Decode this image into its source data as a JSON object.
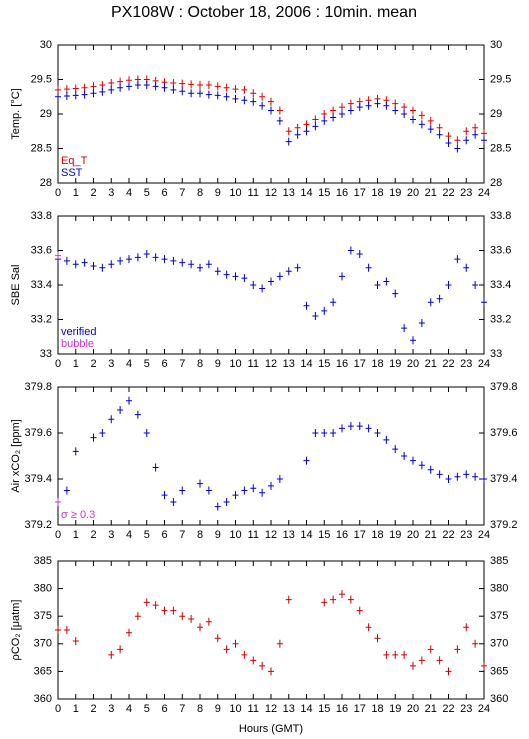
{
  "chart_data": [
    {
      "type": "scatter",
      "title": "PX108W : October 18, 2006 : 10min. mean",
      "ylabel": "Temp. [°C]",
      "x": [
        0,
        0.5,
        1,
        1.5,
        2,
        2.5,
        3,
        3.5,
        4,
        4.5,
        5,
        5.5,
        6,
        6.5,
        7,
        7.5,
        8,
        8.5,
        9,
        9.5,
        10,
        10.5,
        11,
        11.5,
        12,
        12.5,
        13,
        13.5,
        14,
        14.5,
        15,
        15.5,
        16,
        16.5,
        17,
        17.5,
        18,
        18.5,
        19,
        19.5,
        20,
        20.5,
        21,
        21.5,
        22,
        22.5,
        23,
        23.5,
        24
      ],
      "xlim": [
        0,
        24
      ],
      "xticks": [
        0,
        1,
        2,
        3,
        4,
        5,
        6,
        7,
        8,
        9,
        10,
        11,
        12,
        13,
        14,
        15,
        16,
        17,
        18,
        19,
        20,
        21,
        22,
        23,
        24
      ],
      "ylim": [
        28,
        30
      ],
      "yticks": [
        28,
        28.5,
        29,
        29.5,
        30
      ],
      "legend": "lower left",
      "series": [
        {
          "name": "Eq_T",
          "color": "#dd0000",
          "values": [
            29.35,
            29.36,
            29.37,
            29.38,
            29.4,
            29.42,
            29.45,
            29.47,
            29.49,
            29.5,
            29.5,
            29.48,
            29.46,
            29.45,
            29.44,
            29.43,
            29.42,
            29.42,
            29.4,
            29.38,
            29.36,
            29.35,
            29.3,
            29.25,
            29.18,
            29.05,
            28.75,
            28.8,
            28.85,
            28.92,
            29.0,
            29.05,
            29.1,
            29.15,
            29.18,
            29.2,
            29.22,
            29.2,
            29.15,
            29.1,
            29.05,
            28.98,
            28.9,
            28.8,
            28.68,
            28.62,
            28.75,
            28.8,
            28.72
          ]
        },
        {
          "name": "SST",
          "color": "#0000cc",
          "values": [
            29.25,
            29.26,
            29.27,
            29.28,
            29.3,
            29.32,
            29.35,
            29.38,
            29.4,
            29.42,
            29.42,
            29.4,
            29.38,
            29.35,
            29.33,
            29.3,
            29.3,
            29.28,
            29.27,
            29.25,
            29.22,
            29.2,
            29.18,
            29.12,
            29.05,
            28.9,
            28.6,
            28.7,
            28.75,
            28.82,
            28.9,
            28.95,
            29.0,
            29.05,
            29.1,
            29.12,
            29.15,
            29.12,
            29.05,
            29.0,
            28.92,
            28.85,
            28.78,
            28.7,
            28.58,
            28.5,
            28.62,
            28.7,
            28.62
          ]
        }
      ]
    },
    {
      "type": "scatter",
      "ylabel": "SBE Sal",
      "x": [
        0,
        0.5,
        1,
        1.5,
        2,
        2.5,
        3,
        3.5,
        4,
        4.5,
        5,
        5.5,
        6,
        6.5,
        7,
        7.5,
        8,
        8.5,
        9,
        9.5,
        10,
        10.5,
        11,
        11.5,
        12,
        12.5,
        13,
        13.5,
        14,
        14.5,
        15,
        15.5,
        16,
        16.5,
        17,
        17.5,
        18,
        18.5,
        19,
        19.5,
        20,
        20.5,
        21,
        21.5,
        22,
        22.5,
        23,
        23.5,
        24
      ],
      "xlim": [
        0,
        24
      ],
      "xticks": [
        0,
        1,
        2,
        3,
        4,
        5,
        6,
        7,
        8,
        9,
        10,
        11,
        12,
        13,
        14,
        15,
        16,
        17,
        18,
        19,
        20,
        21,
        22,
        23,
        24
      ],
      "ylim": [
        33,
        33.8
      ],
      "yticks": [
        33,
        33.2,
        33.4,
        33.6,
        33.8
      ],
      "legend": "lower left",
      "series": [
        {
          "name": "verified",
          "color": "#0000cc",
          "values": [
            33.55,
            33.54,
            33.52,
            33.53,
            33.51,
            33.5,
            33.52,
            33.54,
            33.55,
            33.56,
            33.58,
            33.56,
            33.55,
            33.54,
            33.53,
            33.52,
            33.5,
            33.52,
            33.48,
            33.46,
            33.45,
            33.44,
            33.4,
            33.38,
            33.42,
            33.45,
            33.48,
            33.5,
            33.28,
            33.22,
            33.25,
            33.3,
            33.45,
            33.6,
            33.58,
            33.5,
            33.4,
            33.42,
            33.35,
            33.15,
            33.08,
            33.18,
            33.3,
            33.32,
            33.4,
            33.55,
            33.5,
            33.4,
            33.3
          ]
        },
        {
          "name": "bubble",
          "color": "#cc33cc",
          "values": [
            33.57,
            null,
            null,
            null,
            null,
            null,
            null,
            null,
            null,
            null,
            null,
            null,
            null,
            null,
            null,
            null,
            null,
            null,
            null,
            null,
            null,
            null,
            null,
            null,
            null,
            null,
            null,
            null,
            null,
            null,
            null,
            null,
            null,
            null,
            null,
            null,
            null,
            null,
            null,
            null,
            null,
            null,
            null,
            null,
            null,
            null,
            null,
            null,
            null
          ]
        }
      ]
    },
    {
      "type": "scatter",
      "ylabel": "Air xCO₂ [ppm]",
      "x": [
        0,
        0.5,
        1,
        1.5,
        2,
        2.5,
        3,
        3.5,
        4,
        4.5,
        5,
        5.5,
        6,
        6.5,
        7,
        7.5,
        8,
        8.5,
        9,
        9.5,
        10,
        10.5,
        11,
        11.5,
        12,
        12.5,
        13,
        13.5,
        14,
        14.5,
        15,
        15.5,
        16,
        16.5,
        17,
        17.5,
        18,
        18.5,
        19,
        19.5,
        20,
        20.5,
        21,
        21.5,
        22,
        22.5,
        23,
        23.5,
        24
      ],
      "xlim": [
        0,
        24
      ],
      "xticks": [
        0,
        1,
        2,
        3,
        4,
        5,
        6,
        7,
        8,
        9,
        10,
        11,
        12,
        13,
        14,
        15,
        16,
        17,
        18,
        19,
        20,
        21,
        22,
        23,
        24
      ],
      "ylim": [
        379.2,
        379.8
      ],
      "yticks": [
        379.2,
        379.4,
        379.6,
        379.8
      ],
      "legend": "lower left",
      "series": [
        {
          "color": "#0000cc",
          "values": [
            379.3,
            379.35,
            379.52,
            null,
            379.58,
            379.6,
            379.66,
            379.7,
            379.74,
            379.68,
            379.6,
            379.45,
            379.33,
            379.3,
            379.35,
            null,
            379.38,
            379.35,
            379.28,
            379.3,
            379.33,
            379.35,
            379.36,
            379.34,
            379.37,
            379.4,
            null,
            null,
            379.48,
            379.6,
            379.6,
            379.6,
            379.62,
            379.63,
            379.63,
            379.62,
            379.6,
            379.57,
            379.53,
            379.5,
            379.48,
            379.46,
            379.44,
            379.42,
            379.4,
            379.41,
            379.42,
            379.41,
            379.4
          ]
        },
        {
          "name": "σ ≥ 0.3",
          "color": "#cc33cc",
          "values": [
            379.3,
            null,
            null,
            null,
            null,
            null,
            null,
            null,
            null,
            null,
            null,
            null,
            null,
            null,
            null,
            null,
            null,
            null,
            null,
            null,
            null,
            null,
            null,
            null,
            null,
            null,
            null,
            null,
            null,
            null,
            null,
            null,
            null,
            null,
            null,
            null,
            null,
            null,
            null,
            null,
            null,
            null,
            null,
            null,
            null,
            null,
            null,
            null,
            null
          ]
        }
      ]
    },
    {
      "type": "scatter",
      "ylabel": "ρCO₂ [μatm]",
      "xlabel": "Hours (GMT)",
      "x": [
        0,
        0.5,
        1,
        1.5,
        2,
        2.5,
        3,
        3.5,
        4,
        4.5,
        5,
        5.5,
        6,
        6.5,
        7,
        7.5,
        8,
        8.5,
        9,
        9.5,
        10,
        10.5,
        11,
        11.5,
        12,
        12.5,
        13,
        13.5,
        14,
        14.5,
        15,
        15.5,
        16,
        16.5,
        17,
        17.5,
        18,
        18.5,
        19,
        19.5,
        20,
        20.5,
        21,
        21.5,
        22,
        22.5,
        23,
        23.5,
        24
      ],
      "xlim": [
        0,
        24
      ],
      "xticks": [
        0,
        1,
        2,
        3,
        4,
        5,
        6,
        7,
        8,
        9,
        10,
        11,
        12,
        13,
        14,
        15,
        16,
        17,
        18,
        19,
        20,
        21,
        22,
        23,
        24
      ],
      "ylim": [
        360,
        385
      ],
      "yticks": [
        360,
        365,
        370,
        375,
        380,
        385
      ],
      "series": [
        {
          "color": "#cc0000",
          "values": [
            372.5,
            372.5,
            370.5,
            null,
            null,
            null,
            368,
            369,
            372,
            375,
            377.5,
            377,
            376,
            376,
            375,
            374.5,
            373,
            374,
            371,
            369,
            370,
            368,
            367,
            366,
            365,
            370,
            378,
            null,
            null,
            null,
            377.5,
            378,
            379,
            378,
            376,
            373,
            371,
            368,
            368,
            368,
            366,
            367,
            369,
            367,
            365,
            369,
            373,
            370,
            366
          ]
        }
      ]
    }
  ]
}
